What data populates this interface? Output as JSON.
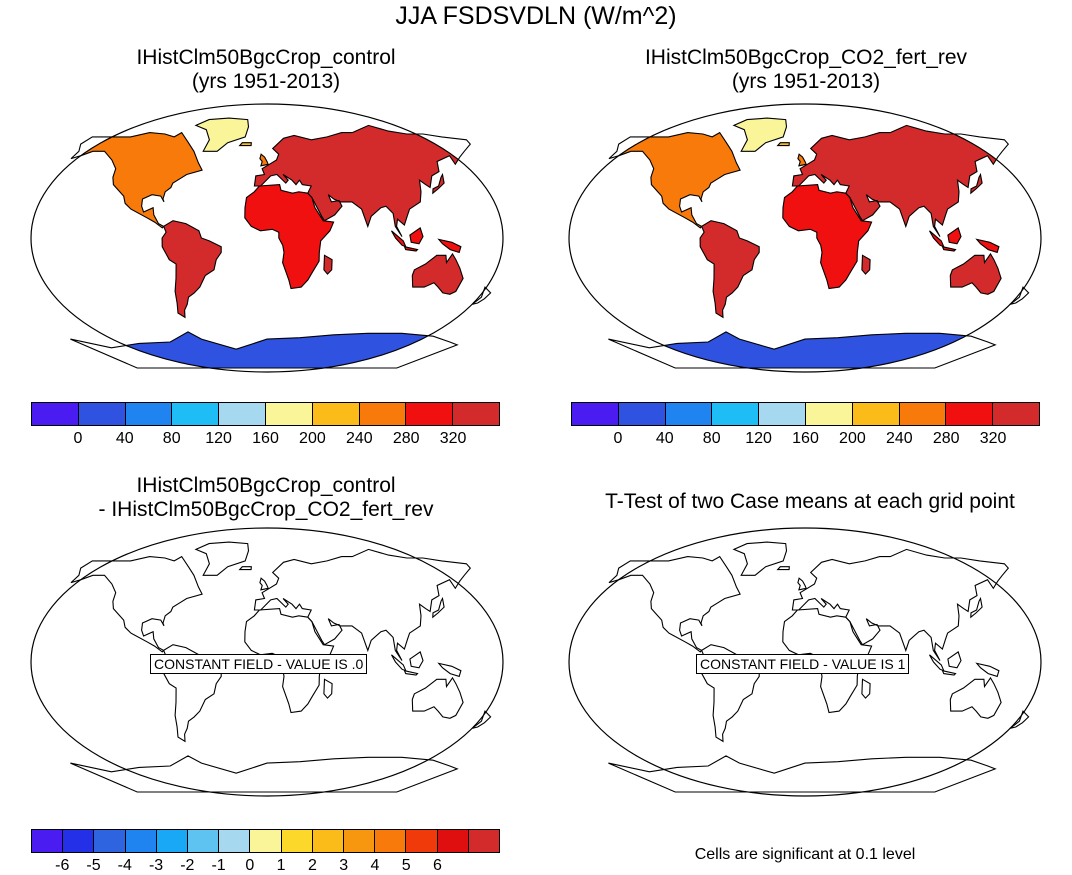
{
  "title": "JJA FSDSVDLN (W/m^2)",
  "panels": [
    {
      "line1": "IHistClm50BgcCrop_control",
      "line2": "(yrs 1951-2013)"
    },
    {
      "line1": "IHistClm50BgcCrop_CO2_fert_rev",
      "line2": "(yrs 1951-2013)"
    },
    {
      "line1": "IHistClm50BgcCrop_control",
      "line2": "- IHistClm50BgcCrop_CO2_fert_rev"
    },
    {
      "line1": "T-Test of two Case means at each grid point",
      "line2": ""
    }
  ],
  "constant_labels": {
    "diff": "CONSTANT FIELD - VALUE IS .0",
    "ttest": "CONSTANT FIELD - VALUE IS 1"
  },
  "colorbar_top": {
    "colors": [
      "#4a1cf2",
      "#2f52e0",
      "#1f84f0",
      "#1fbdf5",
      "#a6d8f0",
      "#fbf59a",
      "#fbbb18",
      "#f77a0a",
      "#f01010",
      "#d32b2b"
    ],
    "ticks": [
      "0",
      "40",
      "80",
      "120",
      "160",
      "200",
      "240",
      "280",
      "320"
    ]
  },
  "colorbar_diff": {
    "colors": [
      "#4a1cf2",
      "#2330e8",
      "#2f64e0",
      "#1f84f0",
      "#18a8f5",
      "#5ec3f0",
      "#a6d8f0",
      "#fbf59a",
      "#fbd82a",
      "#fbbb18",
      "#f7960f",
      "#f77a0a",
      "#f03a0a",
      "#e00f0f",
      "#d32b2b"
    ],
    "ticks": [
      "-6",
      "-5",
      "-4",
      "-3",
      "-2",
      "-1",
      "0",
      "1",
      "2",
      "3",
      "4",
      "5",
      "6"
    ]
  },
  "significance_note": "Cells are significant at 0.1 level"
}
